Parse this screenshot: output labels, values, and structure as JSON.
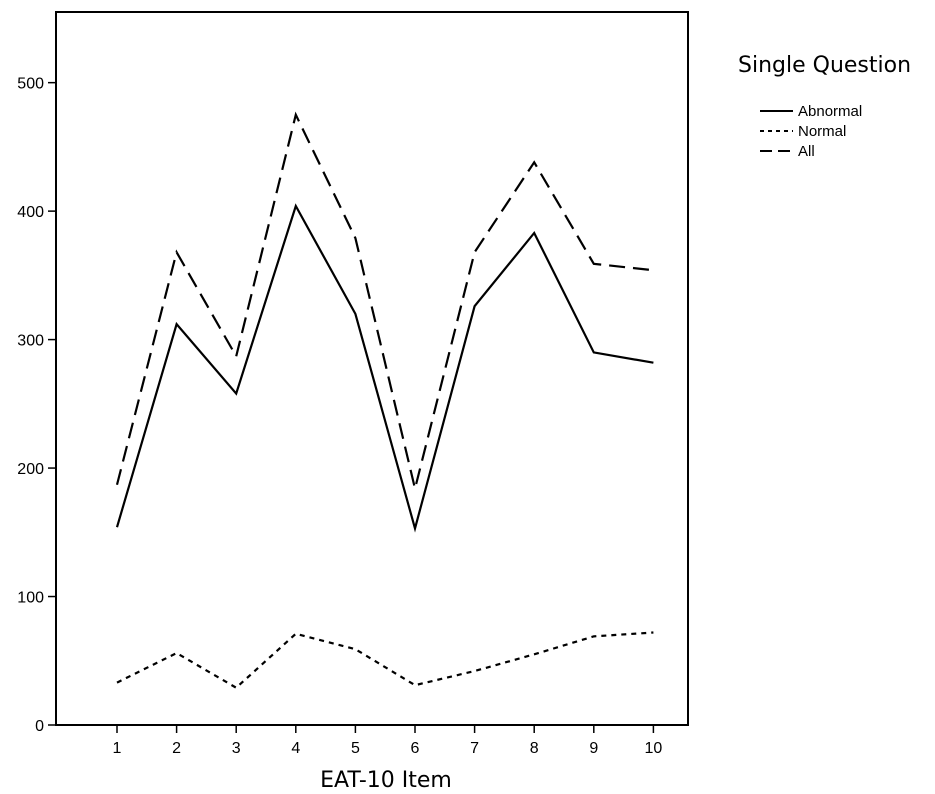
{
  "chart_data": {
    "type": "line",
    "title": "",
    "xlabel": "EAT-10 Item",
    "ylabel": "",
    "categories": [
      "1",
      "2",
      "3",
      "4",
      "5",
      "6",
      "7",
      "8",
      "9",
      "10"
    ],
    "ylim": [
      0,
      550
    ],
    "yticks": [
      0,
      100,
      200,
      300,
      400,
      500
    ],
    "grid": false,
    "legend": {
      "title": "Single Question",
      "placement": "right"
    },
    "series": [
      {
        "name": "Abnormal",
        "style": "solid",
        "color": "#000000",
        "values": [
          154,
          312,
          258,
          404,
          320,
          153,
          326,
          383,
          290,
          282
        ]
      },
      {
        "name": "Normal",
        "style": "dotted",
        "color": "#000000",
        "values": [
          33,
          56,
          29,
          71,
          59,
          31,
          42,
          55,
          69,
          72
        ]
      },
      {
        "name": "All",
        "style": "dashed",
        "color": "#000000",
        "values": [
          187,
          368,
          287,
          475,
          379,
          184,
          368,
          438,
          359,
          354
        ]
      }
    ]
  }
}
